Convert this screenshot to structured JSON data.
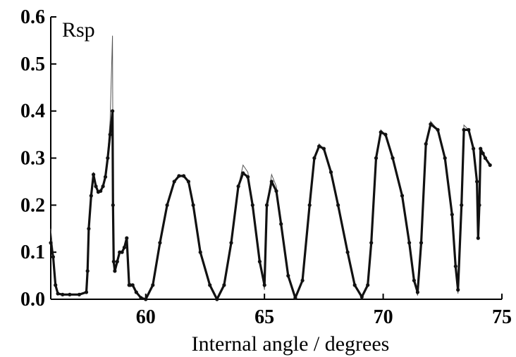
{
  "chart_data": {
    "type": "scatter",
    "title": "",
    "xlabel": "Internal angle / degrees",
    "ylabel": "Rsp",
    "xlim": [
      56,
      75
    ],
    "ylim": [
      0.0,
      0.6
    ],
    "xticks": [
      60,
      65,
      70,
      75
    ],
    "yticks": [
      0.0,
      0.1,
      0.2,
      0.3,
      0.4,
      0.5,
      0.6
    ],
    "xtick_labels": [
      "60",
      "65",
      "70",
      "75"
    ],
    "ytick_labels": [
      "0.0",
      "0.1",
      "0.2",
      "0.3",
      "0.4",
      "0.5",
      "0.6"
    ],
    "grid": false,
    "legend": "none",
    "series": [
      {
        "style": "measured (dense markers)",
        "color": "#111111",
        "x": [
          56.0,
          56.1,
          56.2,
          56.3,
          56.5,
          56.8,
          57.2,
          57.5,
          57.55,
          57.6,
          57.7,
          57.8,
          57.9,
          58.0,
          58.1,
          58.2,
          58.3,
          58.4,
          58.5,
          58.6,
          58.62,
          58.65,
          58.7,
          58.8,
          58.9,
          59.0,
          59.1,
          59.2,
          59.3,
          59.35,
          59.45,
          59.6,
          59.8,
          60.0,
          60.3,
          60.6,
          60.9,
          61.2,
          61.4,
          61.6,
          61.8,
          62.0,
          62.3,
          62.7,
          63.0,
          63.3,
          63.6,
          63.9,
          64.1,
          64.3,
          64.5,
          64.8,
          65.0,
          65.1,
          65.3,
          65.5,
          65.7,
          66.0,
          66.3,
          66.6,
          66.9,
          67.1,
          67.3,
          67.5,
          67.8,
          68.1,
          68.5,
          68.8,
          69.1,
          69.35,
          69.5,
          69.7,
          69.9,
          70.1,
          70.4,
          70.8,
          71.1,
          71.3,
          71.45,
          71.6,
          71.8,
          72.0,
          72.3,
          72.6,
          72.9,
          73.05,
          73.15,
          73.3,
          73.4,
          73.6,
          73.8,
          73.95,
          74.0,
          74.05,
          74.1,
          74.2,
          74.3,
          74.5
        ],
        "y": [
          0.12,
          0.09,
          0.03,
          0.012,
          0.01,
          0.01,
          0.01,
          0.015,
          0.06,
          0.15,
          0.22,
          0.265,
          0.24,
          0.228,
          0.23,
          0.24,
          0.26,
          0.3,
          0.35,
          0.4,
          0.2,
          0.08,
          0.06,
          0.08,
          0.1,
          0.1,
          0.11,
          0.13,
          0.03,
          0.03,
          0.03,
          0.015,
          0.003,
          0.0,
          0.03,
          0.12,
          0.2,
          0.25,
          0.262,
          0.262,
          0.25,
          0.2,
          0.1,
          0.03,
          0.0,
          0.03,
          0.12,
          0.24,
          0.268,
          0.26,
          0.2,
          0.08,
          0.03,
          0.2,
          0.25,
          0.23,
          0.16,
          0.05,
          0.003,
          0.04,
          0.2,
          0.3,
          0.325,
          0.32,
          0.27,
          0.2,
          0.1,
          0.03,
          0.005,
          0.03,
          0.12,
          0.3,
          0.355,
          0.35,
          0.3,
          0.22,
          0.12,
          0.04,
          0.015,
          0.12,
          0.33,
          0.372,
          0.36,
          0.3,
          0.18,
          0.07,
          0.02,
          0.2,
          0.36,
          0.36,
          0.32,
          0.25,
          0.13,
          0.2,
          0.32,
          0.31,
          0.3,
          0.285
        ]
      },
      {
        "style": "calculated (thin line)",
        "color": "#555555",
        "x": [
          56.0,
          56.1,
          56.2,
          56.3,
          56.5,
          56.8,
          57.2,
          57.5,
          57.55,
          57.6,
          57.7,
          57.8,
          57.9,
          58.0,
          58.1,
          58.2,
          58.3,
          58.4,
          58.5,
          58.6,
          58.62,
          58.65,
          58.7,
          58.8,
          58.9,
          59.0,
          59.1,
          59.2,
          59.3,
          59.35,
          59.45,
          59.6,
          59.8,
          60.0,
          60.3,
          60.6,
          60.9,
          61.2,
          61.4,
          61.6,
          61.8,
          62.0,
          62.3,
          62.7,
          63.0,
          63.3,
          63.6,
          63.9,
          64.1,
          64.3,
          64.5,
          64.8,
          65.0,
          65.1,
          65.3,
          65.5,
          65.7,
          66.0,
          66.3,
          66.6,
          66.9,
          67.1,
          67.3,
          67.5,
          67.8,
          68.1,
          68.5,
          68.8,
          69.1,
          69.35,
          69.5,
          69.7,
          69.9,
          70.1,
          70.4,
          70.8,
          71.1,
          71.3,
          71.45,
          71.6,
          71.8,
          72.0,
          72.3,
          72.6,
          72.9,
          73.05,
          73.15,
          73.3,
          73.4,
          73.6,
          73.8,
          73.95,
          74.0,
          74.05,
          74.1,
          74.2,
          74.3,
          74.5
        ],
        "y": [
          0.15,
          0.1,
          0.03,
          0.012,
          0.01,
          0.01,
          0.01,
          0.015,
          0.06,
          0.16,
          0.23,
          0.27,
          0.24,
          0.228,
          0.23,
          0.24,
          0.26,
          0.31,
          0.38,
          0.56,
          0.25,
          0.08,
          0.06,
          0.08,
          0.1,
          0.1,
          0.11,
          0.13,
          0.03,
          0.03,
          0.03,
          0.015,
          0.003,
          0.0,
          0.03,
          0.12,
          0.2,
          0.25,
          0.262,
          0.262,
          0.25,
          0.2,
          0.1,
          0.03,
          0.0,
          0.03,
          0.12,
          0.24,
          0.285,
          0.27,
          0.2,
          0.08,
          0.02,
          0.2,
          0.265,
          0.24,
          0.16,
          0.05,
          0.002,
          0.04,
          0.2,
          0.3,
          0.33,
          0.32,
          0.27,
          0.2,
          0.1,
          0.03,
          0.002,
          0.03,
          0.12,
          0.3,
          0.36,
          0.35,
          0.3,
          0.22,
          0.12,
          0.04,
          0.008,
          0.12,
          0.33,
          0.378,
          0.36,
          0.3,
          0.18,
          0.07,
          0.012,
          0.2,
          0.37,
          0.36,
          0.32,
          0.25,
          0.13,
          0.2,
          0.32,
          0.31,
          0.3,
          0.285
        ]
      }
    ]
  }
}
